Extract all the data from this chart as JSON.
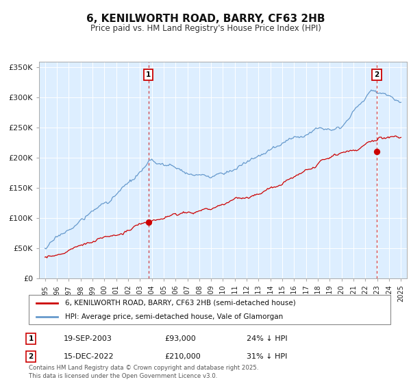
{
  "title": "6, KENILWORTH ROAD, BARRY, CF63 2HB",
  "subtitle": "Price paid vs. HM Land Registry's House Price Index (HPI)",
  "hpi_color": "#6699cc",
  "price_color": "#cc0000",
  "bg_color": "#ddeeff",
  "point1_date_label": "19-SEP-2003",
  "point1_price": 93000,
  "point1_hpi_pct": "24% ↓ HPI",
  "point2_date_label": "15-DEC-2022",
  "point2_price": 210000,
  "point2_hpi_pct": "31% ↓ HPI",
  "point1_x": 2003.72,
  "point2_x": 2022.96,
  "legend_label1": "6, KENILWORTH ROAD, BARRY, CF63 2HB (semi-detached house)",
  "legend_label2": "HPI: Average price, semi-detached house, Vale of Glamorgan",
  "footer": "Contains HM Land Registry data © Crown copyright and database right 2025.\nThis data is licensed under the Open Government Licence v3.0.",
  "ylim": [
    0,
    360000
  ],
  "xlim_start": 1994.5,
  "xlim_end": 2025.5,
  "yticks": [
    0,
    50000,
    100000,
    150000,
    200000,
    250000,
    300000,
    350000
  ],
  "ytick_labels": [
    "£0",
    "£50K",
    "£100K",
    "£150K",
    "£200K",
    "£250K",
    "£300K",
    "£350K"
  ],
  "xticks": [
    1995,
    1996,
    1997,
    1998,
    1999,
    2000,
    2001,
    2002,
    2003,
    2004,
    2005,
    2006,
    2007,
    2008,
    2009,
    2010,
    2011,
    2012,
    2013,
    2014,
    2015,
    2016,
    2017,
    2018,
    2019,
    2020,
    2021,
    2022,
    2023,
    2024,
    2025
  ]
}
